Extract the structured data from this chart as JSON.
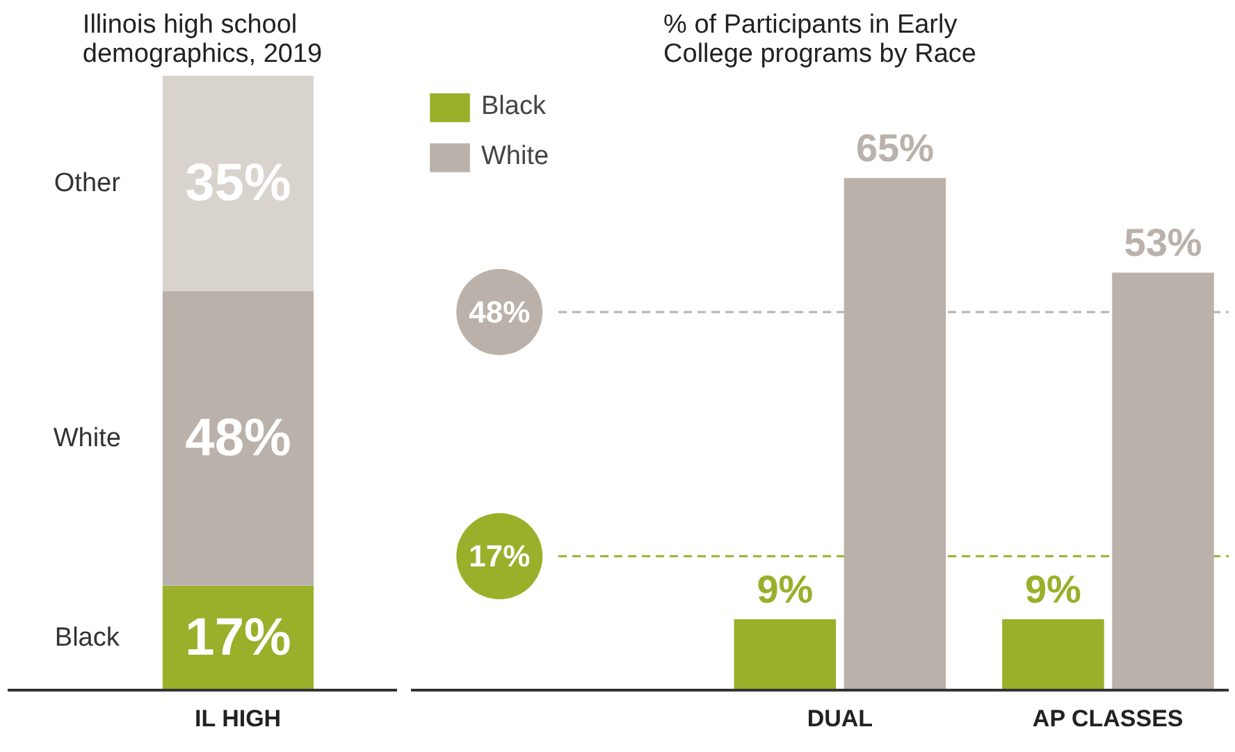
{
  "chart_data": [
    {
      "type": "bar",
      "title": "Illinois high school demographics, 2019",
      "categories": [
        "IL HIGH"
      ],
      "stacked": true,
      "tick_labels": "x",
      "grid": false,
      "series": [
        {
          "name": "Black",
          "color": "#9aaf2a",
          "values": [
            17
          ],
          "value_labels": [
            "17%"
          ]
        },
        {
          "name": "White",
          "color": "#bab2aa",
          "values": [
            48
          ],
          "value_labels": [
            "48%"
          ]
        },
        {
          "name": "Other",
          "color": "#d9d3ce",
          "values": [
            35
          ],
          "value_labels": [
            "35%"
          ]
        }
      ]
    },
    {
      "type": "bar",
      "title": "% of Participants in Early College programs by Race",
      "categories": [
        "DUAL",
        "AP CLASSES"
      ],
      "tick_labels": "x",
      "grid": false,
      "legend": "top left",
      "series": [
        {
          "name": "Black",
          "color": "#9aaf2a",
          "values": [
            9,
            9
          ],
          "value_labels": [
            "9%",
            "9%"
          ]
        },
        {
          "name": "White",
          "color": "#bab2aa",
          "values": [
            65,
            53
          ],
          "value_labels": [
            "65%",
            "53%"
          ]
        }
      ],
      "ref_lines": [
        {
          "axis": "y",
          "value": 48,
          "label": "48%",
          "color": "#bab2aa",
          "line_style": "dashed"
        },
        {
          "axis": "y",
          "value": 17,
          "label": "17%",
          "color": "#9aaf2a",
          "line_style": "dashed"
        }
      ]
    }
  ]
}
